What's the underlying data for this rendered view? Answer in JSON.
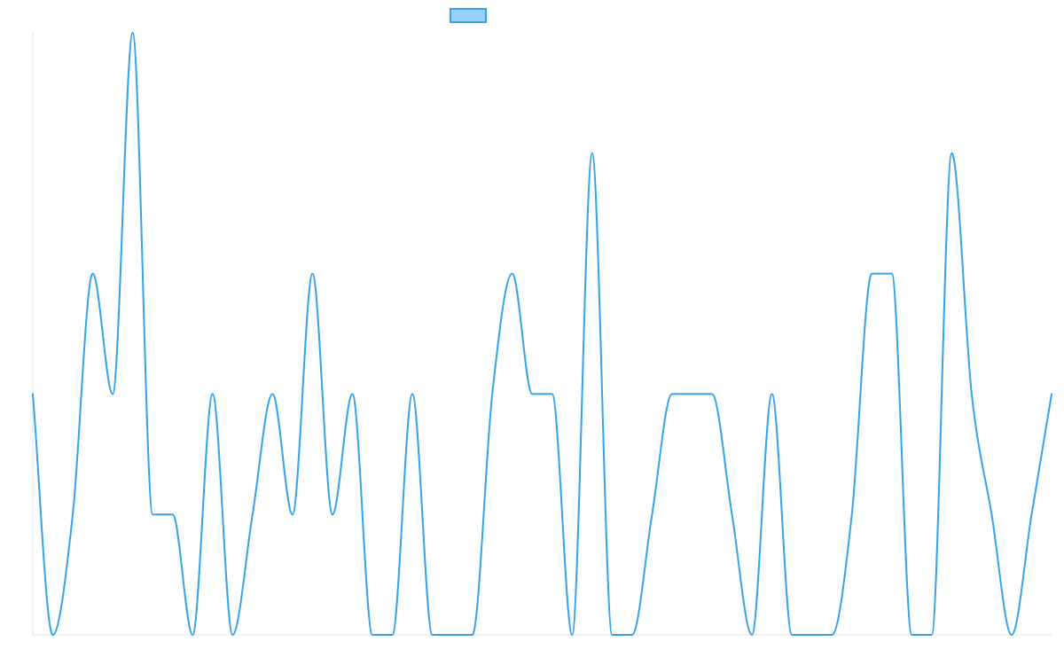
{
  "chart_data": {
    "type": "line",
    "title": "",
    "xlabel": "",
    "ylabel": "",
    "ylim": [
      0,
      15
    ],
    "grid": false,
    "legend_position": "top-center",
    "series": [
      {
        "name": "",
        "color": "#36a2eb",
        "fill_color": "#9ad0f5",
        "values": [
          6,
          0,
          3,
          9,
          6,
          15,
          3,
          3,
          0,
          6,
          0,
          3,
          6,
          3,
          9,
          3,
          6,
          0,
          0,
          6,
          0,
          0,
          0,
          6,
          9,
          6,
          6,
          0,
          12,
          0,
          0,
          3,
          6,
          6,
          6,
          3,
          0,
          6,
          0,
          0,
          0,
          3,
          9,
          9,
          0,
          0,
          12,
          6,
          3,
          0,
          3,
          6
        ]
      }
    ]
  }
}
